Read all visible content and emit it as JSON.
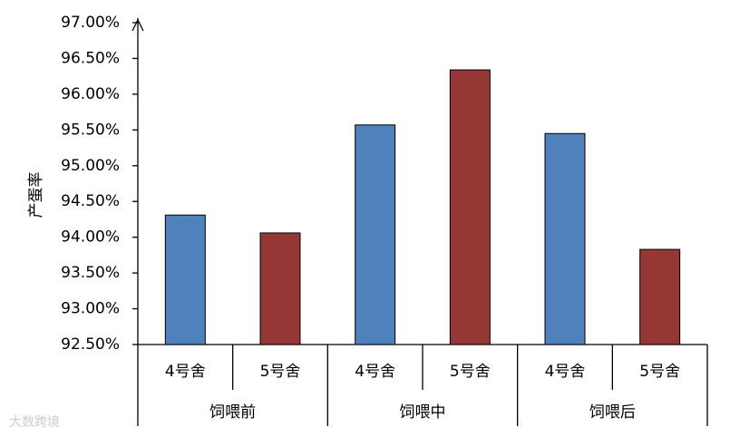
{
  "chart_data": {
    "type": "bar",
    "y_label": "产蛋率",
    "groups": [
      "饲喂前",
      "饲喂中",
      "饲喂后"
    ],
    "categories": [
      "4号舍",
      "5号舍",
      "4号舍",
      "5号舍",
      "4号舍",
      "5号舍"
    ],
    "values": [
      94.31,
      94.06,
      95.57,
      96.34,
      95.45,
      93.83
    ],
    "colors": [
      "#4f81bd",
      "#953735",
      "#4f81bd",
      "#953735",
      "#4f81bd",
      "#953735"
    ],
    "ylim": [
      92.5,
      97.0
    ],
    "yticks": [
      {
        "value": 92.5,
        "label": "92.50%"
      },
      {
        "value": 93.0,
        "label": "93.00%"
      },
      {
        "value": 93.5,
        "label": "93.50%"
      },
      {
        "value": 94.0,
        "label": "94.00%"
      },
      {
        "value": 94.5,
        "label": "94.50%"
      },
      {
        "value": 95.0,
        "label": "95.00%"
      },
      {
        "value": 95.5,
        "label": "95.50%"
      },
      {
        "value": 96.0,
        "label": "96.00%"
      },
      {
        "value": 96.5,
        "label": "96.50%"
      },
      {
        "value": 97.0,
        "label": "97.00%"
      }
    ],
    "grid": false,
    "watermark": "大数跨境"
  }
}
